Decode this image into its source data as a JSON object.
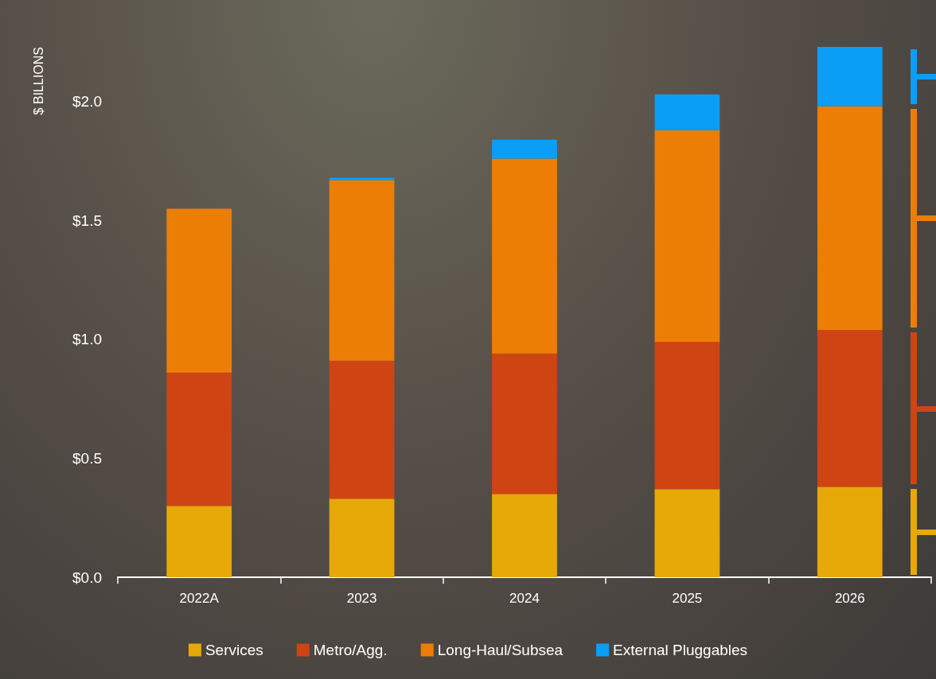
{
  "chart_data": {
    "type": "bar",
    "stacked": true,
    "ylabel": "$ BILLIONS",
    "categories": [
      "2022A",
      "2023",
      "2024",
      "2025",
      "2026"
    ],
    "series": [
      {
        "name": "Services",
        "color": "#e6a908",
        "values": [
          0.3,
          0.33,
          0.35,
          0.37,
          0.38
        ]
      },
      {
        "name": "Metro/Agg.",
        "color": "#cf4413",
        "values": [
          0.56,
          0.58,
          0.59,
          0.62,
          0.66
        ]
      },
      {
        "name": "Long-Haul/Subsea",
        "color": "#ec7e06",
        "values": [
          0.69,
          0.76,
          0.82,
          0.89,
          0.94
        ]
      },
      {
        "name": "External Pluggables",
        "color": "#0a9ef7",
        "values": [
          null,
          0.01,
          0.08,
          0.15,
          0.25
        ]
      }
    ],
    "ylim": [
      0,
      2.23
    ],
    "yticks": [
      {
        "value": 0,
        "label": "$0.0"
      },
      {
        "value": 0.5,
        "label": "$0.5"
      },
      {
        "value": 1,
        "label": "$1.0"
      },
      {
        "value": 1.5,
        "label": "$1.5"
      },
      {
        "value": 2,
        "label": "$2.0"
      }
    ],
    "grid": false,
    "legend": "bottom"
  }
}
